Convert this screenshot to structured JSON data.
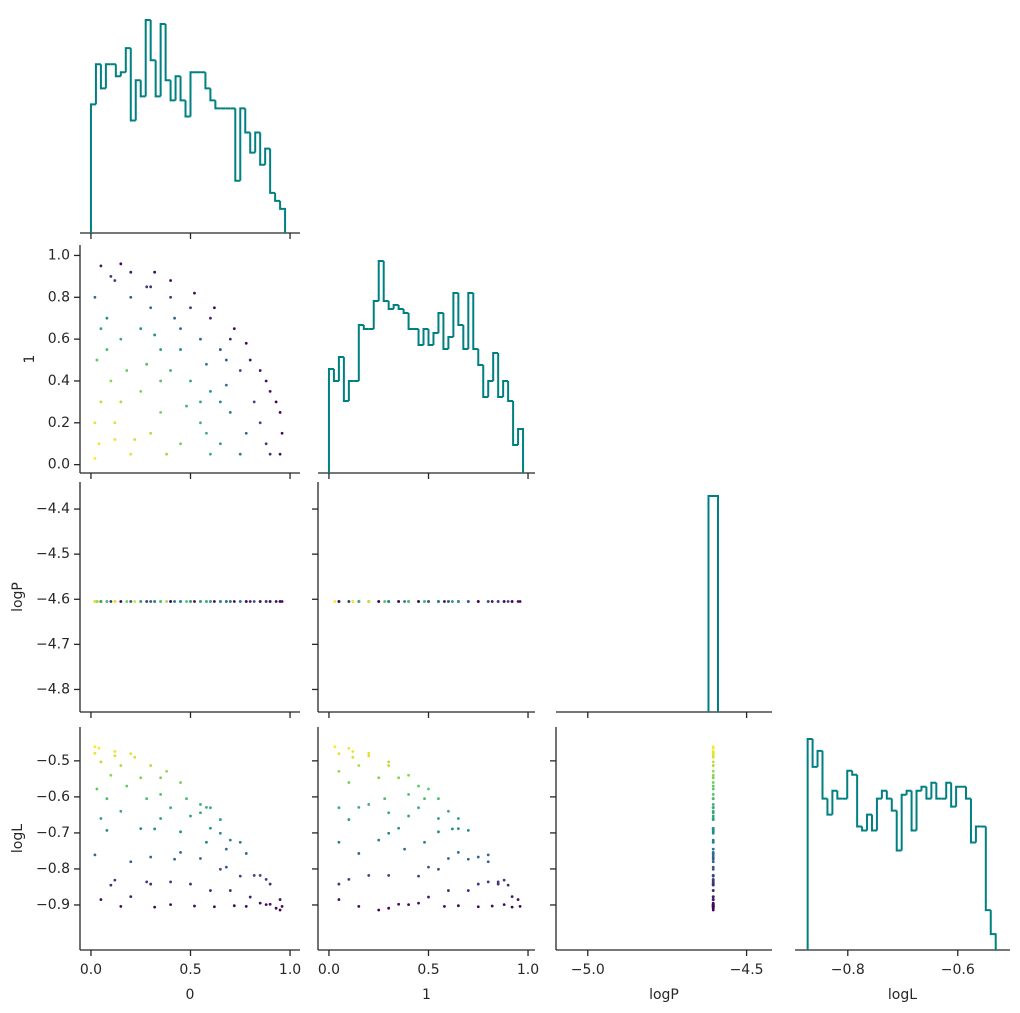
{
  "chart_data": {
    "type": "corner",
    "variables": [
      "0",
      "1",
      "logP",
      "logL"
    ],
    "color": "#008080",
    "cmap": "viridis",
    "axes": [
      {
        "xlim": [
          -0.055,
          1.05
        ],
        "xticks": [
          {
            "value": 0,
            "label": "0.0"
          },
          {
            "value": 0.5,
            "label": "0.5"
          },
          {
            "value": 1,
            "label": "1.0"
          }
        ]
      },
      {
        "xlim": [
          -0.055,
          1.035
        ],
        "xticks": [
          {
            "value": 0,
            "label": "0.0"
          },
          {
            "value": 0.5,
            "label": "0.5"
          },
          {
            "value": 1,
            "label": "1.0"
          }
        ],
        "ylim": [
          -0.04,
          1.05
        ],
        "yticks": [
          {
            "value": 0,
            "label": "0.0"
          },
          {
            "value": 0.2,
            "label": "0.2"
          },
          {
            "value": 0.4,
            "label": "0.4"
          },
          {
            "value": 0.6,
            "label": "0.6"
          },
          {
            "value": 0.8,
            "label": "0.8"
          },
          {
            "value": 1,
            "label": "1.0"
          }
        ]
      },
      {
        "xlim": [
          -5.1,
          -4.42
        ],
        "xticks": [
          {
            "value": -5.0,
            "label": "−5.0"
          },
          {
            "value": -4.5,
            "label": "−4.5"
          }
        ],
        "ylim": [
          -4.85,
          -4.34
        ],
        "yticks": [
          {
            "value": -4.8,
            "label": "−4.8"
          },
          {
            "value": -4.7,
            "label": "−4.7"
          },
          {
            "value": -4.6,
            "label": "−4.6"
          },
          {
            "value": -4.5,
            "label": "−4.5"
          },
          {
            "value": -4.4,
            "label": "−4.4"
          }
        ]
      },
      {
        "xlim": [
          -0.896,
          -0.505
        ],
        "xticks": [
          {
            "value": -0.8,
            "label": "−0.8"
          },
          {
            "value": -0.6,
            "label": "−0.6"
          }
        ],
        "ylim": [
          -1.025,
          -0.406
        ],
        "yticks": [
          {
            "value": -0.9,
            "label": "−0.9"
          },
          {
            "value": -0.8,
            "label": "−0.8"
          },
          {
            "value": -0.7,
            "label": "−0.7"
          },
          {
            "value": -0.6,
            "label": "−0.6"
          },
          {
            "value": -0.5,
            "label": "−0.5"
          }
        ]
      }
    ],
    "histograms": [
      {
        "bins": [
          0,
          0.025,
          0.05,
          0.075,
          0.1,
          0.125,
          0.15,
          0.175,
          0.2,
          0.225,
          0.25,
          0.275,
          0.3,
          0.325,
          0.35,
          0.375,
          0.4,
          0.425,
          0.45,
          0.475,
          0.5,
          0.525,
          0.55,
          0.575,
          0.6,
          0.625,
          0.65,
          0.675,
          0.7,
          0.725,
          0.75,
          0.775,
          0.8,
          0.825,
          0.85,
          0.875,
          0.9,
          0.925,
          0.95,
          0.975
        ],
        "counts": [
          32,
          42,
          36,
          42,
          42,
          39,
          40,
          46,
          28,
          38,
          34,
          53,
          43,
          34,
          52,
          38,
          33,
          39,
          33,
          29,
          40,
          40,
          40,
          36,
          33,
          31,
          31,
          31,
          31,
          13,
          31,
          25,
          20,
          25,
          17,
          21,
          10,
          8,
          6
        ],
        "ylim": [
          0,
          55
        ]
      },
      {
        "bins": [
          0,
          0.025,
          0.05,
          0.075,
          0.1,
          0.125,
          0.15,
          0.175,
          0.2,
          0.225,
          0.25,
          0.275,
          0.3,
          0.325,
          0.35,
          0.375,
          0.4,
          0.425,
          0.45,
          0.475,
          0.5,
          0.525,
          0.55,
          0.575,
          0.6,
          0.625,
          0.65,
          0.675,
          0.7,
          0.725,
          0.75,
          0.775,
          0.8,
          0.825,
          0.85,
          0.875,
          0.9,
          0.925,
          0.95,
          0.975
        ],
        "counts": [
          26,
          23,
          29,
          18,
          23,
          23,
          37,
          36,
          36,
          43,
          53,
          43,
          41,
          42,
          41,
          40,
          36,
          36,
          32,
          36,
          32,
          35,
          40,
          31,
          34,
          45,
          37,
          31,
          45,
          31,
          27,
          19,
          23,
          30,
          19,
          23,
          18,
          7,
          11
        ],
        "ylim": [
          0,
          57
        ]
      },
      {
        "bins": [
          -4.62,
          -4.59
        ],
        "counts": [
          2000
        ],
        "ylim": [
          0,
          2130
        ]
      },
      {
        "bins": [
          -0.873,
          -0.864,
          -0.855,
          -0.846,
          -0.837,
          -0.828,
          -0.819,
          -0.81,
          -0.801,
          -0.792,
          -0.783,
          -0.774,
          -0.765,
          -0.756,
          -0.747,
          -0.738,
          -0.729,
          -0.72,
          -0.711,
          -0.702,
          -0.693,
          -0.684,
          -0.675,
          -0.666,
          -0.657,
          -0.648,
          -0.639,
          -0.63,
          -0.621,
          -0.612,
          -0.603,
          -0.594,
          -0.585,
          -0.576,
          -0.567,
          -0.558,
          -0.549,
          -0.54,
          -0.531
        ],
        "counts": [
          53,
          46,
          50,
          38,
          34,
          40,
          38,
          38,
          45,
          44,
          31,
          30,
          34,
          30,
          38,
          40,
          38,
          35,
          25,
          39,
          40,
          30,
          40,
          41,
          38,
          42,
          38,
          38,
          42,
          36,
          41,
          41,
          38,
          27,
          31,
          31,
          10,
          4
        ],
        "ylim": [
          0,
          56
        ]
      }
    ],
    "samples": [
      [
        0.05,
        0.12,
        0.2,
        0.3,
        0.4,
        0.5,
        0.6,
        0.7,
        0.8,
        0.88,
        0.93,
        0.96,
        0.9,
        0.02,
        0.08,
        0.15,
        0.03,
        0.1,
        0.05,
        0.12,
        0.04,
        0.02,
        0.2,
        0.3,
        0.25,
        0.35,
        0.4,
        0.45,
        0.55,
        0.5,
        0.6,
        0.65,
        0.7,
        0.75,
        0.78,
        0.82,
        0.85,
        0.95,
        0.55,
        0.45,
        0.35,
        0.25,
        0.3,
        0.2,
        0.1,
        0.4,
        0.62,
        0.72,
        0.68,
        0.58,
        0.15,
        0.22,
        0.08,
        0.18,
        0.28,
        0.38,
        0.48,
        0.6,
        0.85,
        0.9,
        0.75,
        0.95,
        0.65,
        0.52,
        0.32,
        0.15,
        0.05,
        0.12,
        0.35,
        0.45,
        0.55,
        0.68,
        0.78,
        0.88,
        0.42,
        0.28,
        0.65,
        0.02,
        0.32,
        0.58
      ],
      [
        0.95,
        0.88,
        0.92,
        0.85,
        0.8,
        0.75,
        0.7,
        0.6,
        0.5,
        0.4,
        0.3,
        0.15,
        0.05,
        0.8,
        0.7,
        0.6,
        0.5,
        0.4,
        0.3,
        0.2,
        0.1,
        0.03,
        0.05,
        0.15,
        0.35,
        0.25,
        0.45,
        0.1,
        0.2,
        0.4,
        0.35,
        0.1,
        0.25,
        0.45,
        0.15,
        0.3,
        0.2,
        0.25,
        0.6,
        0.65,
        0.55,
        0.65,
        0.75,
        0.8,
        0.9,
        0.88,
        0.75,
        0.65,
        0.5,
        0.48,
        0.3,
        0.12,
        0.55,
        0.45,
        0.48,
        0.05,
        0.28,
        0.05,
        0.45,
        0.35,
        0.05,
        0.05,
        0.55,
        0.82,
        0.92,
        0.96,
        0.65,
        0.12,
        0.4,
        0.55,
        0.3,
        0.38,
        0.58,
        0.1,
        0.7,
        0.85,
        0.3,
        0.2,
        0.62,
        0.15
      ],
      [
        -4.605,
        -4.605,
        -4.605,
        -4.605,
        -4.605,
        -4.605,
        -4.605,
        -4.605,
        -4.605,
        -4.605,
        -4.605,
        -4.605,
        -4.605,
        -4.605,
        -4.605,
        -4.605,
        -4.605,
        -4.605,
        -4.605,
        -4.605,
        -4.605,
        -4.605,
        -4.605,
        -4.605,
        -4.605,
        -4.605,
        -4.605,
        -4.605,
        -4.605,
        -4.605,
        -4.605,
        -4.605,
        -4.605,
        -4.605,
        -4.605,
        -4.605,
        -4.605,
        -4.605,
        -4.605,
        -4.605,
        -4.605,
        -4.605,
        -4.605,
        -4.605,
        -4.605,
        -4.605,
        -4.605,
        -4.605,
        -4.605,
        -4.605,
        -4.605,
        -4.605,
        -4.605,
        -4.605,
        -4.605,
        -4.605,
        -4.605,
        -4.605,
        -4.605,
        -4.605,
        -4.605,
        -4.605,
        -4.605,
        -4.605,
        -4.605,
        -4.605,
        -4.605,
        -4.605,
        -4.605,
        -4.605,
        -4.605,
        -4.605,
        -4.605,
        -4.605,
        -4.605,
        -4.605,
        -4.605,
        -4.605,
        -4.605,
        -4.605
      ],
      [
        -0.885,
        -0.831,
        -0.877,
        -0.842,
        -0.836,
        -0.842,
        -0.86,
        -0.86,
        -0.878,
        -0.899,
        -0.909,
        -0.904,
        -0.842,
        -0.761,
        -0.693,
        -0.64,
        -0.578,
        -0.54,
        -0.503,
        -0.486,
        -0.465,
        -0.461,
        -0.48,
        -0.513,
        -0.547,
        -0.547,
        -0.63,
        -0.56,
        -0.621,
        -0.653,
        -0.687,
        -0.663,
        -0.72,
        -0.82,
        -0.757,
        -0.818,
        -0.818,
        -0.914,
        -0.771,
        -0.754,
        -0.66,
        -0.688,
        -0.767,
        -0.78,
        -0.845,
        -0.899,
        -0.905,
        -0.902,
        -0.795,
        -0.726,
        -0.513,
        -0.49,
        -0.605,
        -0.57,
        -0.605,
        -0.529,
        -0.605,
        -0.63,
        -0.895,
        -0.898,
        -0.726,
        -0.885,
        -0.801,
        -0.903,
        -0.906,
        -0.904,
        -0.66,
        -0.474,
        -0.593,
        -0.697,
        -0.644,
        -0.745,
        -0.904,
        -0.829,
        -0.773,
        -0.836,
        -0.701,
        -0.479,
        -0.689,
        -0.629
      ]
    ]
  }
}
